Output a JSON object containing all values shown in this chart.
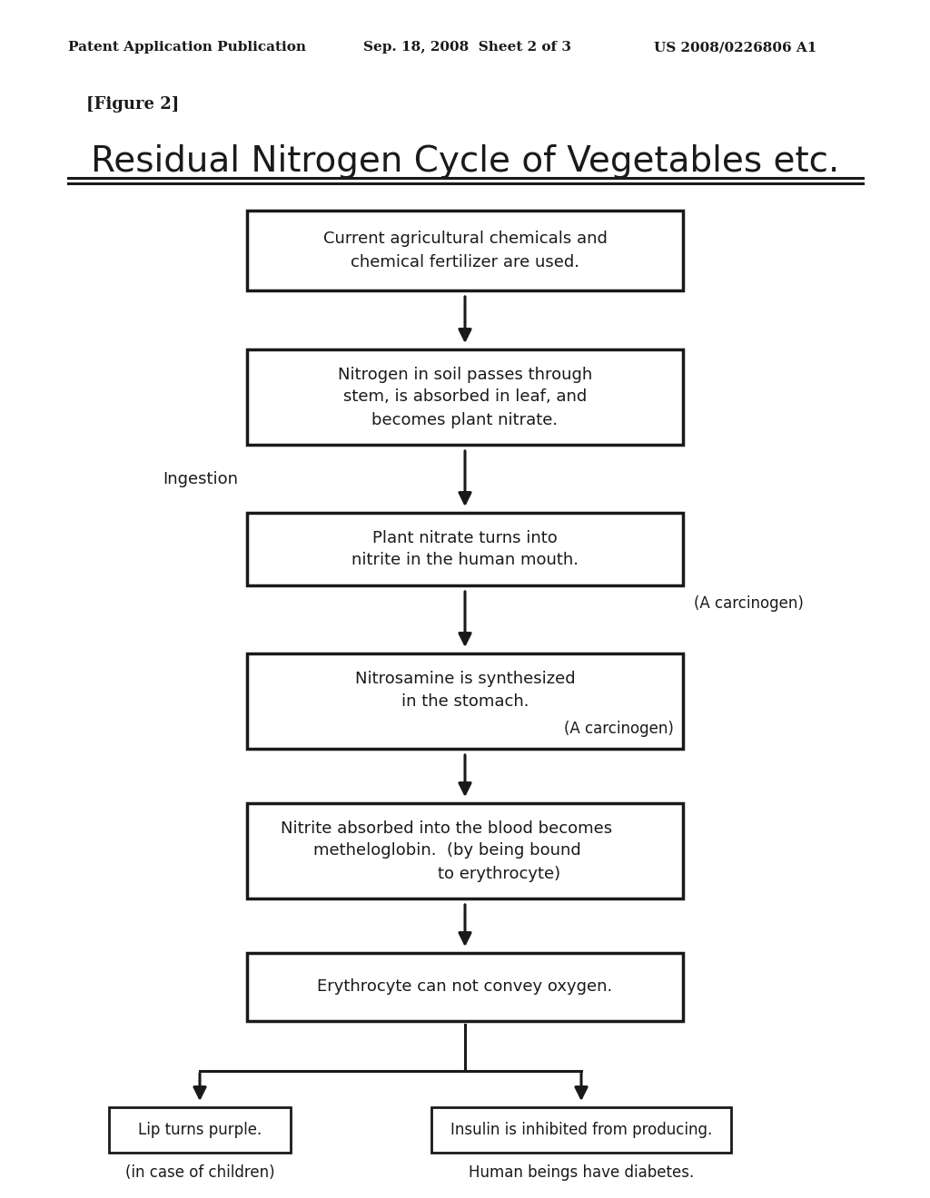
{
  "bg_color": "#ffffff",
  "header_left": "Patent Application Publication",
  "header_mid": "Sep. 18, 2008  Sheet 2 of 3",
  "header_right": "US 2008/0226806 A1",
  "figure_label": "[Figure 2]",
  "title": "Residual Nitrogen Cycle of Vegetables etc.",
  "box1_text": "Current agricultural chemicals and\nchemical fertilizer are used.",
  "box2_text": "Nitrogen in soil passes through\nstem, is absorbed in leaf, and\nbecomes plant nitrate.",
  "box3_text": "Plant nitrate turns into\nnitrite in the human mouth.",
  "box3_note": "(A carcinogen)",
  "box4_text": "Nitrosamine is synthesized\nin the stomach.",
  "box4_note": "(A carcinogen)",
  "box5_text": "Nitrite absorbed into the blood becomes\nmetheloglobin.  (by being bound\n                    to erythrocyte)",
  "box6_text": "Erythrocyte can not convey oxygen.",
  "box7_text": "Lip turns purple.",
  "box7_note": "(in case of children)",
  "box8_text": "Insulin is inhibited from producing.",
  "box8_note": "Human beings have diabetes.",
  "ingestion_label": "Ingestion"
}
